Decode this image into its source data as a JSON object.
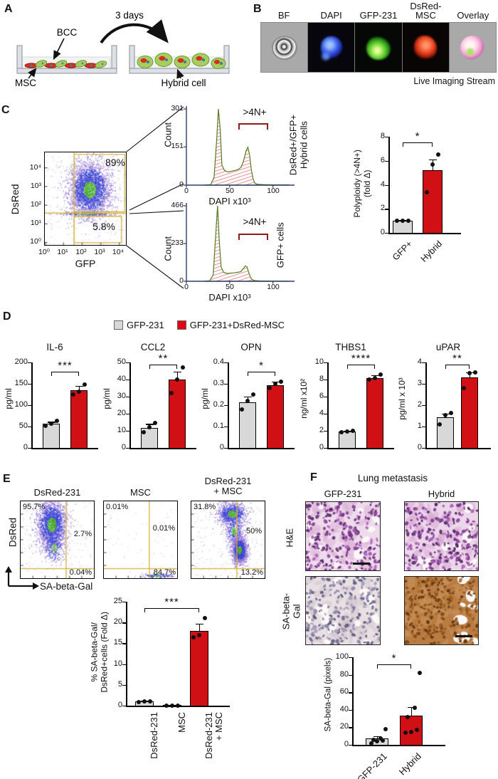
{
  "a": {
    "label": "A",
    "duration": "3 days",
    "bcc_label": "BCC",
    "msc_label": "MSC",
    "hybrid_label": "Hybrid cell"
  },
  "b": {
    "label": "B",
    "columns": [
      "BF",
      "DAPI",
      "GFP-231",
      "DsRed-\nMSC",
      "Overlay"
    ],
    "caption": "Live Imaging Stream"
  },
  "c": {
    "label": "C"
  },
  "d": {
    "label": "D",
    "legend": [
      {
        "label": "GFP-231",
        "color": "#d8d8d8"
      },
      {
        "label": "GFP-231+DsRed-MSC",
        "color": "#e30613"
      }
    ]
  },
  "e": {
    "label": "E",
    "xlabel": "SA-beta-Gal",
    "ylabel": "DsRed"
  },
  "f": {
    "label": "F",
    "title": "Lung metastasis",
    "col_labels": [
      "GFP-231",
      "Hybrid"
    ],
    "row_labels": [
      "H&E",
      "SA-beta-\nGal"
    ],
    "images": [
      {
        "name": "he-gfp231",
        "bg": "#eedbec",
        "cyto": "#d9aed3",
        "nuclei": [
          "#8b3f98",
          "#6d2f7e",
          "#a95fb5",
          "#55266b"
        ],
        "holes": 10,
        "holes_right": false,
        "nnuc": 230
      },
      {
        "name": "he-hybrid",
        "bg": "#ecd6ea",
        "cyto": "#d5a6cf",
        "nuclei": [
          "#8b3f98",
          "#7a3590",
          "#a95fb5",
          "#4f2460"
        ],
        "holes": 9,
        "holes_right": false,
        "nnuc": 240
      },
      {
        "name": "sa-gfp231",
        "bg": "#e9e0e4",
        "cyto": "#cfc3cb",
        "nuclei": [
          "#8d87ab",
          "#6e6a92",
          "#a59cb6",
          "#5a567a"
        ],
        "holes": 14,
        "holes_right": false,
        "nnuc": 210
      },
      {
        "name": "sa-hybrid",
        "bg": "#b97c42",
        "cyto": "#cb965e",
        "nuclei": [
          "#7c4515",
          "#93571d",
          "#60350f",
          "#a86a2e"
        ],
        "holes": 12,
        "holes_right": true,
        "nnuc": 240
      }
    ]
  },
  "chart_data": {
    "palette": {
      "grey": "#d8d8d8",
      "red": "#d11016",
      "gate": "#d8b33c",
      "hatch": "#d65050",
      "hist_line": "#567a1e",
      "axis_blue": "#2c3e6b",
      "bracket": "#8b1d1d"
    },
    "flow_c": {
      "type": "scatter",
      "xlabel": "GFP",
      "ylabel": "DsRed",
      "xticks": [
        "10⁰",
        "10¹",
        "10²",
        "10³",
        "10⁴"
      ],
      "yticks": [
        "10⁴",
        "10³",
        "10²",
        "10¹",
        "10⁰"
      ],
      "pct_upper": "89%",
      "pct_lower": "5.8%",
      "gate_color": "#d8b33c",
      "clouds": [
        {
          "uniform": true,
          "n": 300
        },
        {
          "cx": 0.55,
          "cy": 0.4,
          "sx": 0.13,
          "sy": 0.15,
          "n": 3200
        },
        {
          "cx": 0.5,
          "cy": 0.66,
          "sx": 0.2,
          "sy": 0.013,
          "n": 220
        }
      ],
      "gates": [
        {
          "v": 0.36
        },
        {
          "h": 0.655
        },
        {
          "r": [
            0.36,
            0.02,
            0.985,
            0.64
          ]
        },
        {
          "r": [
            0.36,
            0.69,
            0.945,
            0.975
          ]
        }
      ],
      "xtick_fr": [
        0.01,
        0.23,
        0.46,
        0.69,
        0.92
      ],
      "ytick_fr": [
        0.167,
        0.368,
        0.57,
        0.771,
        0.973
      ]
    },
    "hist_hybrid": {
      "type": "area",
      "ylabel": "Count",
      "xlabel": "DAPI x10³",
      "gate_label": ">4N+",
      "right_label": "DsRed+/GFP+\nHybrid cells",
      "yticks": [
        301,
        151,
        0
      ],
      "xticks": [
        0,
        50,
        100
      ],
      "ymax": 301,
      "xmax": 120,
      "points": [
        [
          20,
          0
        ],
        [
          28,
          2
        ],
        [
          32,
          30
        ],
        [
          35,
          180
        ],
        [
          37,
          301
        ],
        [
          39,
          220
        ],
        [
          41,
          80
        ],
        [
          44,
          58
        ],
        [
          48,
          52
        ],
        [
          52,
          55
        ],
        [
          56,
          58
        ],
        [
          60,
          62
        ],
        [
          63,
          70
        ],
        [
          66,
          95
        ],
        [
          69,
          135
        ],
        [
          71,
          150
        ],
        [
          73,
          120
        ],
        [
          75,
          60
        ],
        [
          77,
          25
        ],
        [
          79,
          8
        ],
        [
          82,
          3
        ],
        [
          90,
          2
        ],
        [
          100,
          1
        ],
        [
          118,
          1
        ]
      ]
    },
    "hist_gfp": {
      "type": "area",
      "ylabel": "Count",
      "xlabel": "DAPI x10³",
      "gate_label": ">4N+",
      "right_label": "GFP+ cells",
      "yticks": [
        466,
        233,
        0
      ],
      "xticks": [
        0,
        50,
        100
      ],
      "ymax": 466,
      "xmax": 120,
      "points": [
        [
          20,
          0
        ],
        [
          27,
          3
        ],
        [
          31,
          40
        ],
        [
          34,
          300
        ],
        [
          36,
          466
        ],
        [
          38,
          250
        ],
        [
          40,
          90
        ],
        [
          43,
          55
        ],
        [
          47,
          48
        ],
        [
          51,
          50
        ],
        [
          55,
          52
        ],
        [
          59,
          55
        ],
        [
          63,
          60
        ],
        [
          66,
          80
        ],
        [
          68,
          95
        ],
        [
          70,
          88
        ],
        [
          72,
          55
        ],
        [
          74,
          25
        ],
        [
          76,
          10
        ],
        [
          79,
          4
        ],
        [
          85,
          2
        ],
        [
          100,
          1
        ],
        [
          118,
          1
        ]
      ]
    },
    "polyploidy": {
      "type": "bar",
      "ylabel": "Polyploidy (>4N+)\n(fold Δ)",
      "ylim": [
        0,
        8
      ],
      "yticks": [
        0,
        2,
        4,
        6,
        8
      ],
      "categories": [
        "GFP+",
        "Hybrid"
      ],
      "values": [
        1,
        5.2
      ],
      "colors": [
        "grey",
        "red"
      ],
      "errors": [
        0.07,
        0.9
      ],
      "dots": [
        [
          1,
          1,
          1
        ],
        [
          3.4,
          5.7,
          6.5
        ]
      ],
      "sig": {
        "from": 0,
        "to": 1,
        "label": "*"
      }
    },
    "il6": {
      "type": "bar",
      "title": "IL-6",
      "ylabel": "pg/ml",
      "ylim": [
        0,
        200
      ],
      "yticks": [
        0,
        50,
        100,
        150,
        200
      ],
      "categories": [
        "GFP-231",
        "GFP-231+DsRed-MSC"
      ],
      "values": [
        57,
        135
      ],
      "colors": [
        "grey",
        "red"
      ],
      "errors": [
        4,
        10
      ],
      "dots": [
        [
          52,
          57,
          63
        ],
        [
          125,
          132,
          148
        ]
      ],
      "sig": {
        "from": 0,
        "to": 1,
        "label": "***"
      }
    },
    "ccl2": {
      "type": "bar",
      "title": "CCL2",
      "ylabel": "pg/ml",
      "ylim": [
        0,
        50
      ],
      "yticks": [
        0,
        10,
        20,
        30,
        40,
        50
      ],
      "categories": [
        "GFP-231",
        "GFP-231+DsRed-MSC"
      ],
      "values": [
        11.5,
        40
      ],
      "colors": [
        "grey",
        "red"
      ],
      "errors": [
        2.5,
        4.5
      ],
      "dots": [
        [
          9,
          12,
          14.5
        ],
        [
          32,
          40,
          47
        ]
      ],
      "sig": {
        "from": 0,
        "to": 1,
        "label": "**"
      }
    },
    "opn": {
      "type": "bar",
      "title": "OPN",
      "ylabel": "pg/ml",
      "ylim": [
        0,
        0.4
      ],
      "yticks": [
        0,
        0.1,
        0.2,
        0.3,
        0.4
      ],
      "categories": [
        "GFP-231",
        "GFP-231+DsRed-MSC"
      ],
      "values": [
        0.215,
        0.295
      ],
      "colors": [
        "grey",
        "red"
      ],
      "errors": [
        0.025,
        0.015
      ],
      "dots": [
        [
          0.18,
          0.22,
          0.25
        ],
        [
          0.28,
          0.3,
          0.31
        ]
      ],
      "sig": {
        "from": 0,
        "to": 1,
        "label": "*"
      }
    },
    "thbs1": {
      "type": "bar",
      "title": "THBS1",
      "ylabel": "ng/ml x10²",
      "ylim": [
        0,
        10
      ],
      "yticks": [
        0,
        2,
        4,
        6,
        8,
        10
      ],
      "categories": [
        "GFP-231",
        "GFP-231+DsRed-MSC"
      ],
      "values": [
        1.9,
        8.2
      ],
      "colors": [
        "grey",
        "red"
      ],
      "errors": [
        0.12,
        0.3
      ],
      "dots": [
        [
          1.8,
          1.9,
          2.0
        ],
        [
          8.0,
          8.15,
          8.6
        ]
      ],
      "sig": {
        "from": 0,
        "to": 1,
        "label": "****"
      }
    },
    "upar": {
      "type": "bar",
      "title": "uPAR",
      "ylabel": "pg/ml x 10³",
      "ylim": [
        0,
        4
      ],
      "yticks": [
        0,
        1,
        2,
        3,
        4
      ],
      "categories": [
        "GFP-231",
        "GFP-231+DsRed-MSC"
      ],
      "values": [
        1.45,
        3.3
      ],
      "colors": [
        "grey",
        "red"
      ],
      "errors": [
        0.15,
        0.25
      ],
      "dots": [
        [
          1.1,
          1.55,
          1.62
        ],
        [
          2.8,
          3.5,
          3.55
        ]
      ],
      "sig": {
        "from": 0,
        "to": 1,
        "label": "**"
      }
    },
    "flow_e": [
      {
        "title": "DsRed-231",
        "pcts": [
          "95.7%",
          "2.7%",
          "0.04%"
        ],
        "clouds": [
          {
            "uniform": true,
            "n": 200
          },
          {
            "cx": 0.42,
            "cy": 0.3,
            "sx": 0.1,
            "sy": 0.16,
            "n": 2400
          },
          {
            "cx": 0.45,
            "cy": 0.6,
            "sx": 0.07,
            "sy": 0.1,
            "n": 300
          }
        ],
        "gates": [
          {
            "v": 0.62
          },
          {
            "h": 0.875
          }
        ]
      },
      {
        "title": "MSC",
        "pcts": [
          "0.01%",
          "0.01%",
          "84.7%"
        ],
        "clouds": [
          {
            "uniform": true,
            "n": 60
          },
          {
            "cx": 0.72,
            "cy": 0.965,
            "sx": 0.12,
            "sy": 0.015,
            "n": 160
          }
        ],
        "gates": [
          {
            "v": 0.62
          },
          {
            "h": 0.875
          }
        ]
      },
      {
        "title": "DsRed-231\n+ MSC",
        "pcts": [
          "31.8%",
          "50%",
          "13.2%"
        ],
        "clouds": [
          {
            "uniform": true,
            "n": 220
          },
          {
            "cx": 0.55,
            "cy": 0.16,
            "sx": 0.1,
            "sy": 0.08,
            "n": 1100
          },
          {
            "cx": 0.58,
            "cy": 0.38,
            "sx": 0.06,
            "sy": 0.1,
            "n": 350
          },
          {
            "cx": 0.655,
            "cy": 0.63,
            "sx": 0.05,
            "sy": 0.085,
            "n": 1700
          }
        ],
        "gates": [
          {
            "v": 0.62
          },
          {
            "h": 0.875
          }
        ]
      }
    ],
    "sa_fold": {
      "type": "bar",
      "ylabel": "% SA-beta-Gal/\nDsRed+cells (Fold Δ)",
      "ylim": [
        0,
        25
      ],
      "yticks": [
        0,
        5,
        10,
        15,
        20,
        25
      ],
      "categories": [
        "DsRed-231",
        "MSC",
        "DsRed-231\n+ MSC"
      ],
      "values": [
        1,
        0.15,
        18
      ],
      "colors": [
        "grey",
        "grey",
        "red"
      ],
      "errors": [
        0.12,
        0,
        1.7
      ],
      "dots": [
        [
          0.9,
          1,
          1.1
        ],
        [
          0.08,
          0.08,
          0.08
        ],
        [
          16.4,
          17,
          21
        ]
      ],
      "sig": {
        "from": 0,
        "to": 2,
        "label": "***"
      }
    },
    "sa_pixels": {
      "type": "bar",
      "ylabel": "SA-beta-Gal (pixels)",
      "ylim": [
        0,
        100
      ],
      "yticks": [
        0,
        20,
        40,
        60,
        80,
        100
      ],
      "categories": [
        "GFP-231",
        "Hybrid"
      ],
      "values": [
        7,
        33
      ],
      "colors": [
        "grey",
        "red"
      ],
      "errors": [
        3,
        10
      ],
      "dots": [
        [
          2,
          4,
          5,
          6,
          7,
          18
        ],
        [
          14,
          15,
          17,
          32,
          42,
          82
        ]
      ],
      "sig": {
        "from": 0,
        "to": 1,
        "label": "*"
      }
    }
  }
}
